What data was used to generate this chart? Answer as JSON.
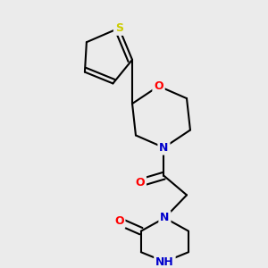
{
  "bg_color": "#ebebeb",
  "atom_colors": {
    "C": "#000000",
    "N": "#0000cc",
    "O": "#ff0000",
    "S": "#cccc00",
    "H": "#444444"
  },
  "bond_color": "#000000",
  "bond_width": 1.5,
  "figsize": [
    3.0,
    3.0
  ],
  "dpi": 100
}
